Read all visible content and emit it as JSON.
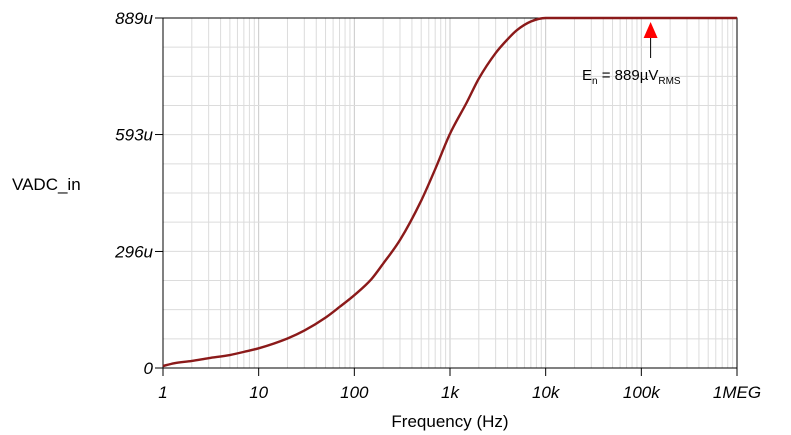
{
  "chart_data": {
    "type": "line",
    "xlabel": "Frequency (Hz)",
    "ylabel": "VADC_in",
    "x_scale": "log",
    "xlim": [
      1,
      1000000
    ],
    "ylim": [
      0,
      0.000889
    ],
    "grid": true,
    "x_tick_labels": [
      "1",
      "10",
      "100",
      "1k",
      "10k",
      "100k",
      "1MEG"
    ],
    "x_ticks": [
      1,
      10,
      100,
      1000,
      10000,
      100000,
      1000000
    ],
    "y_tick_labels": [
      "0",
      "296u",
      "593u",
      "889u"
    ],
    "y_ticks": [
      0,
      0.000296,
      0.000593,
      0.000889
    ],
    "series": [
      {
        "color": "#8b1a1a",
        "x": [
          1,
          1.3,
          2,
          3,
          5,
          7,
          10,
          20,
          30,
          50,
          70,
          100,
          150,
          200,
          300,
          500,
          700,
          1000,
          1500,
          2000,
          3000,
          4000,
          5000,
          7000,
          10000,
          20000,
          50000,
          100000,
          200000,
          500000,
          1000000
        ],
        "y": [
          5e-06,
          1.2e-05,
          1.8e-05,
          2.5e-05,
          3.3e-05,
          4.1e-05,
          5e-05,
          7.5e-05,
          9.5e-05,
          0.000128,
          0.000155,
          0.000185,
          0.000225,
          0.000265,
          0.000325,
          0.000425,
          0.000505,
          0.000595,
          0.000675,
          0.000735,
          0.0008,
          0.000835,
          0.000858,
          0.00088,
          0.000889,
          0.000889,
          0.000889,
          0.000889,
          0.000889,
          0.000889,
          0.000889
        ]
      }
    ],
    "annotations": [
      {
        "text_main": "E",
        "text_sub1": "n",
        "text_mid": " = 889µV",
        "text_sub2": "RMS",
        "arrow_x": 125000,
        "arrow_color": "#ff0000"
      }
    ]
  }
}
